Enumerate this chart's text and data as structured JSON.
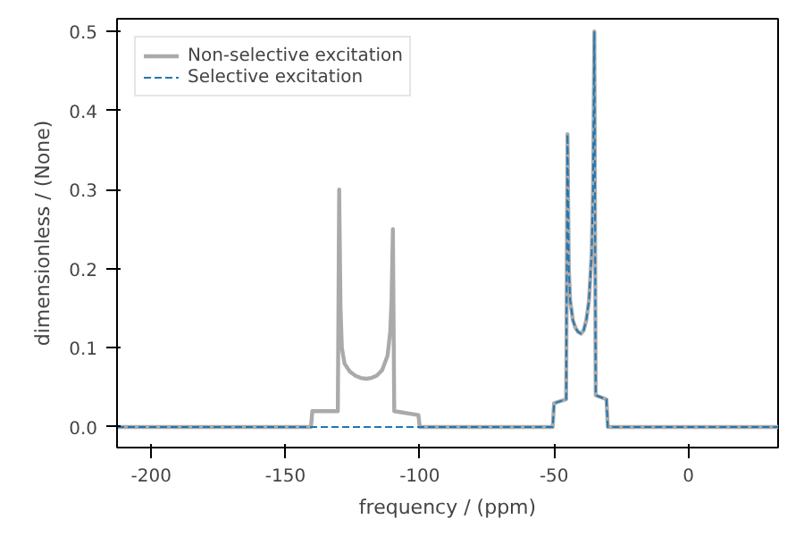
{
  "chart_data": {
    "type": "line",
    "xlabel": "frequency / (ppm)",
    "ylabel": "dimensionless / (None)",
    "xlim": [
      -212.7,
      33.4
    ],
    "ylim": [
      -0.026,
      0.516
    ],
    "xticks": [
      -200,
      -150,
      -100,
      -50,
      0
    ],
    "yticks": [
      {
        "value": 0,
        "label": "0.0"
      },
      0.1,
      0.2,
      0.3,
      0.4,
      0.5
    ],
    "grid": false,
    "legend": "top left",
    "series": [
      {
        "name": "Non-selective excitation",
        "color": "#aaaaaa",
        "line_style": "solid",
        "x": [
          -212.7,
          -140.5,
          -140,
          -130.5,
          -130,
          -129.5,
          -129,
          -128,
          -126,
          -124,
          -122,
          -120,
          -118,
          -116,
          -114,
          -112,
          -111,
          -110.5,
          -110,
          -109.5,
          -100.5,
          -100,
          -50.5,
          -50,
          -45.5,
          -45,
          -44.5,
          -44,
          -43,
          -42,
          -41,
          -40,
          -39,
          -38,
          -37,
          -36,
          -35.5,
          -35,
          -34.5,
          -30.5,
          -30,
          33.4
        ],
        "values": [
          0,
          0,
          0.02,
          0.02,
          0.3,
          0.15,
          0.1,
          0.08,
          0.07,
          0.065,
          0.062,
          0.061,
          0.062,
          0.065,
          0.072,
          0.09,
          0.12,
          0.16,
          0.25,
          0.02,
          0.015,
          0,
          0,
          0.03,
          0.035,
          0.37,
          0.2,
          0.16,
          0.135,
          0.125,
          0.12,
          0.118,
          0.122,
          0.135,
          0.16,
          0.22,
          0.3,
          0.5,
          0.04,
          0.035,
          0,
          0
        ]
      },
      {
        "name": "Selective excitation",
        "color": "#1f77b4",
        "line_style": "dashed",
        "x": [
          -212.7,
          -50.5,
          -50,
          -45.5,
          -45,
          -44.5,
          -44,
          -43,
          -42,
          -41,
          -40,
          -39,
          -38,
          -37,
          -36,
          -35.5,
          -35,
          -34.5,
          -30.5,
          -30,
          33.4
        ],
        "values": [
          0,
          0,
          0.03,
          0.035,
          0.37,
          0.2,
          0.16,
          0.135,
          0.125,
          0.12,
          0.118,
          0.122,
          0.135,
          0.16,
          0.22,
          0.3,
          0.5,
          0.04,
          0.035,
          0,
          0
        ]
      }
    ]
  }
}
